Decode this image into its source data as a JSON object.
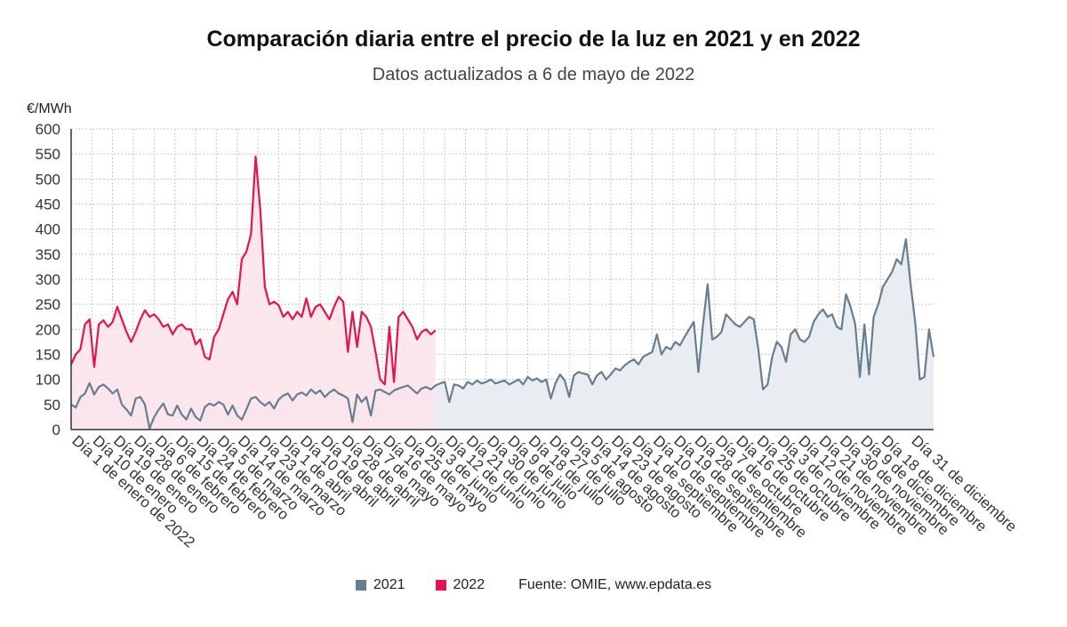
{
  "chart_data": {
    "type": "area",
    "title": "Comparación diaria entre el precio de la luz en 2021 y en 2022",
    "subtitle": "Datos actualizados a 6 de mayo de 2022",
    "ylabel": "€/MWh",
    "ylim": [
      0,
      600
    ],
    "yticks": [
      0,
      50,
      100,
      150,
      200,
      250,
      300,
      350,
      400,
      450,
      500,
      550,
      600
    ],
    "grid": true,
    "legend_position": "bottom",
    "x_tick_labels": [
      "Día 1 de enero de 2022",
      "Día 10 de enero",
      "Día 19 de enero",
      "Día 28 de enero",
      "Día 6 de febrero",
      "Día 15 de febrero",
      "Día 24 de febrero",
      "Día 5 de marzo",
      "Día 14 de marzo",
      "Día 23 de marzo",
      "Día 1 de abril",
      "Día 10 de abril",
      "Día 19 de abril",
      "Día 28 de abril",
      "Día 7 de mayo",
      "Día 16 de mayo",
      "Día 25 de mayo",
      "Día 3 de junio",
      "Día 12 de junio",
      "Día 21 de junio",
      "Día 30 de junio",
      "Día 9 de julio",
      "Día 18 de julio",
      "Día 27 de julio",
      "Día 5 de agosto",
      "Día 14 de agosto",
      "Día 23 de agosto",
      "Día 1 de septiembre",
      "Día 10 de septiembre",
      "Día 19 de septiembre",
      "Día 28 de septiembre",
      "Día 7 de octubre",
      "Día 16 de octubre",
      "Día 25 de octubre",
      "Día 3 de noviembre",
      "Día 12 de noviembre",
      "Día 21 de noviembre",
      "Día 30 de noviembre",
      "Día 9 de diciembre",
      "Día 18 de diciembre",
      "Día 31 de diciembre"
    ],
    "x_tick_days": [
      1,
      10,
      19,
      28,
      37,
      46,
      55,
      64,
      73,
      82,
      91,
      100,
      109,
      118,
      127,
      136,
      145,
      154,
      163,
      172,
      181,
      190,
      199,
      208,
      217,
      226,
      235,
      244,
      253,
      262,
      271,
      280,
      289,
      298,
      307,
      316,
      325,
      334,
      343,
      352,
      365
    ],
    "series": [
      {
        "name": "2021",
        "color": "#667e91",
        "fill": "#e9edf1",
        "points": [
          [
            1,
            50
          ],
          [
            3,
            44
          ],
          [
            5,
            65
          ],
          [
            7,
            72
          ],
          [
            9,
            93
          ],
          [
            11,
            70
          ],
          [
            13,
            85
          ],
          [
            15,
            90
          ],
          [
            17,
            82
          ],
          [
            19,
            72
          ],
          [
            21,
            80
          ],
          [
            23,
            50
          ],
          [
            25,
            40
          ],
          [
            27,
            28
          ],
          [
            29,
            62
          ],
          [
            31,
            65
          ],
          [
            33,
            50
          ],
          [
            35,
            2
          ],
          [
            37,
            25
          ],
          [
            39,
            40
          ],
          [
            41,
            52
          ],
          [
            43,
            30
          ],
          [
            45,
            28
          ],
          [
            47,
            48
          ],
          [
            49,
            30
          ],
          [
            51,
            20
          ],
          [
            53,
            42
          ],
          [
            55,
            25
          ],
          [
            57,
            18
          ],
          [
            59,
            45
          ],
          [
            61,
            52
          ],
          [
            63,
            48
          ],
          [
            65,
            55
          ],
          [
            67,
            50
          ],
          [
            69,
            30
          ],
          [
            71,
            48
          ],
          [
            73,
            28
          ],
          [
            75,
            20
          ],
          [
            77,
            40
          ],
          [
            79,
            62
          ],
          [
            81,
            65
          ],
          [
            83,
            55
          ],
          [
            85,
            48
          ],
          [
            87,
            55
          ],
          [
            89,
            42
          ],
          [
            91,
            60
          ],
          [
            93,
            68
          ],
          [
            95,
            72
          ],
          [
            97,
            58
          ],
          [
            99,
            70
          ],
          [
            101,
            74
          ],
          [
            103,
            68
          ],
          [
            105,
            80
          ],
          [
            107,
            72
          ],
          [
            109,
            78
          ],
          [
            111,
            65
          ],
          [
            113,
            74
          ],
          [
            115,
            80
          ],
          [
            117,
            72
          ],
          [
            119,
            68
          ],
          [
            121,
            62
          ],
          [
            123,
            15
          ],
          [
            125,
            70
          ],
          [
            127,
            55
          ],
          [
            129,
            65
          ],
          [
            131,
            28
          ],
          [
            133,
            78
          ],
          [
            135,
            80
          ],
          [
            137,
            75
          ],
          [
            139,
            70
          ],
          [
            141,
            78
          ],
          [
            143,
            82
          ],
          [
            145,
            85
          ],
          [
            147,
            88
          ],
          [
            149,
            80
          ],
          [
            151,
            72
          ],
          [
            153,
            82
          ],
          [
            155,
            85
          ],
          [
            157,
            80
          ],
          [
            159,
            88
          ],
          [
            161,
            92
          ],
          [
            163,
            95
          ],
          [
            165,
            55
          ],
          [
            167,
            90
          ],
          [
            169,
            88
          ],
          [
            171,
            82
          ],
          [
            173,
            95
          ],
          [
            175,
            90
          ],
          [
            177,
            98
          ],
          [
            179,
            92
          ],
          [
            181,
            95
          ],
          [
            183,
            100
          ],
          [
            185,
            92
          ],
          [
            187,
            95
          ],
          [
            189,
            98
          ],
          [
            191,
            90
          ],
          [
            193,
            95
          ],
          [
            195,
            100
          ],
          [
            197,
            90
          ],
          [
            199,
            105
          ],
          [
            201,
            98
          ],
          [
            203,
            102
          ],
          [
            205,
            95
          ],
          [
            207,
            100
          ],
          [
            209,
            62
          ],
          [
            211,
            92
          ],
          [
            213,
            110
          ],
          [
            215,
            98
          ],
          [
            217,
            65
          ],
          [
            219,
            108
          ],
          [
            221,
            115
          ],
          [
            223,
            112
          ],
          [
            225,
            110
          ],
          [
            227,
            90
          ],
          [
            229,
            108
          ],
          [
            231,
            115
          ],
          [
            233,
            100
          ],
          [
            235,
            110
          ],
          [
            237,
            122
          ],
          [
            239,
            118
          ],
          [
            241,
            128
          ],
          [
            243,
            135
          ],
          [
            245,
            140
          ],
          [
            247,
            130
          ],
          [
            249,
            145
          ],
          [
            251,
            150
          ],
          [
            253,
            155
          ],
          [
            255,
            190
          ],
          [
            257,
            150
          ],
          [
            259,
            165
          ],
          [
            261,
            160
          ],
          [
            263,
            175
          ],
          [
            265,
            168
          ],
          [
            267,
            185
          ],
          [
            269,
            200
          ],
          [
            271,
            215
          ],
          [
            273,
            115
          ],
          [
            275,
            210
          ],
          [
            277,
            290
          ],
          [
            279,
            180
          ],
          [
            281,
            185
          ],
          [
            283,
            195
          ],
          [
            285,
            230
          ],
          [
            287,
            220
          ],
          [
            289,
            210
          ],
          [
            291,
            205
          ],
          [
            293,
            215
          ],
          [
            295,
            225
          ],
          [
            297,
            220
          ],
          [
            299,
            160
          ],
          [
            301,
            80
          ],
          [
            303,
            90
          ],
          [
            305,
            145
          ],
          [
            307,
            175
          ],
          [
            309,
            165
          ],
          [
            311,
            135
          ],
          [
            313,
            190
          ],
          [
            315,
            200
          ],
          [
            317,
            180
          ],
          [
            319,
            175
          ],
          [
            321,
            185
          ],
          [
            323,
            215
          ],
          [
            325,
            230
          ],
          [
            327,
            240
          ],
          [
            329,
            225
          ],
          [
            331,
            230
          ],
          [
            333,
            205
          ],
          [
            335,
            200
          ],
          [
            337,
            270
          ],
          [
            339,
            245
          ],
          [
            341,
            210
          ],
          [
            343,
            105
          ],
          [
            345,
            210
          ],
          [
            347,
            110
          ],
          [
            349,
            225
          ],
          [
            351,
            250
          ],
          [
            353,
            285
          ],
          [
            355,
            300
          ],
          [
            357,
            315
          ],
          [
            359,
            340
          ],
          [
            361,
            330
          ],
          [
            363,
            380
          ],
          [
            365,
            290
          ],
          [
            367,
            215
          ],
          [
            369,
            100
          ],
          [
            371,
            105
          ],
          [
            373,
            200
          ],
          [
            375,
            145
          ]
        ]
      },
      {
        "name": "2022",
        "color": "#e5134e",
        "fill": "#fbe3ea",
        "points": [
          [
            1,
            130
          ],
          [
            3,
            150
          ],
          [
            5,
            160
          ],
          [
            7,
            210
          ],
          [
            9,
            220
          ],
          [
            11,
            125
          ],
          [
            13,
            210
          ],
          [
            15,
            218
          ],
          [
            17,
            205
          ],
          [
            19,
            215
          ],
          [
            21,
            245
          ],
          [
            23,
            220
          ],
          [
            25,
            195
          ],
          [
            27,
            175
          ],
          [
            29,
            195
          ],
          [
            31,
            220
          ],
          [
            33,
            238
          ],
          [
            35,
            225
          ],
          [
            37,
            230
          ],
          [
            39,
            220
          ],
          [
            41,
            205
          ],
          [
            43,
            210
          ],
          [
            45,
            190
          ],
          [
            47,
            205
          ],
          [
            49,
            210
          ],
          [
            51,
            200
          ],
          [
            53,
            200
          ],
          [
            55,
            170
          ],
          [
            57,
            180
          ],
          [
            59,
            145
          ],
          [
            61,
            140
          ],
          [
            63,
            185
          ],
          [
            65,
            200
          ],
          [
            67,
            230
          ],
          [
            69,
            260
          ],
          [
            71,
            275
          ],
          [
            73,
            250
          ],
          [
            75,
            340
          ],
          [
            77,
            355
          ],
          [
            79,
            390
          ],
          [
            81,
            545
          ],
          [
            83,
            440
          ],
          [
            85,
            285
          ],
          [
            87,
            250
          ],
          [
            89,
            255
          ],
          [
            91,
            248
          ],
          [
            93,
            225
          ],
          [
            95,
            235
          ],
          [
            97,
            220
          ],
          [
            99,
            235
          ],
          [
            101,
            225
          ],
          [
            103,
            262
          ],
          [
            105,
            225
          ],
          [
            107,
            245
          ],
          [
            109,
            250
          ],
          [
            111,
            235
          ],
          [
            113,
            220
          ],
          [
            115,
            245
          ],
          [
            117,
            265
          ],
          [
            119,
            255
          ],
          [
            121,
            155
          ],
          [
            123,
            235
          ],
          [
            125,
            165
          ],
          [
            127,
            235
          ],
          [
            129,
            225
          ],
          [
            131,
            205
          ],
          [
            133,
            155
          ],
          [
            135,
            100
          ],
          [
            137,
            90
          ],
          [
            139,
            205
          ],
          [
            141,
            95
          ],
          [
            143,
            225
          ],
          [
            145,
            235
          ],
          [
            147,
            220
          ],
          [
            149,
            205
          ],
          [
            151,
            180
          ],
          [
            153,
            195
          ],
          [
            155,
            200
          ],
          [
            157,
            190
          ],
          [
            159,
            198
          ]
        ]
      }
    ],
    "legend": [
      {
        "name": "2021",
        "color": "#667e91"
      },
      {
        "name": "2022",
        "color": "#e5134e"
      }
    ],
    "source": "Fuente: OMIE, www.epdata.es"
  }
}
